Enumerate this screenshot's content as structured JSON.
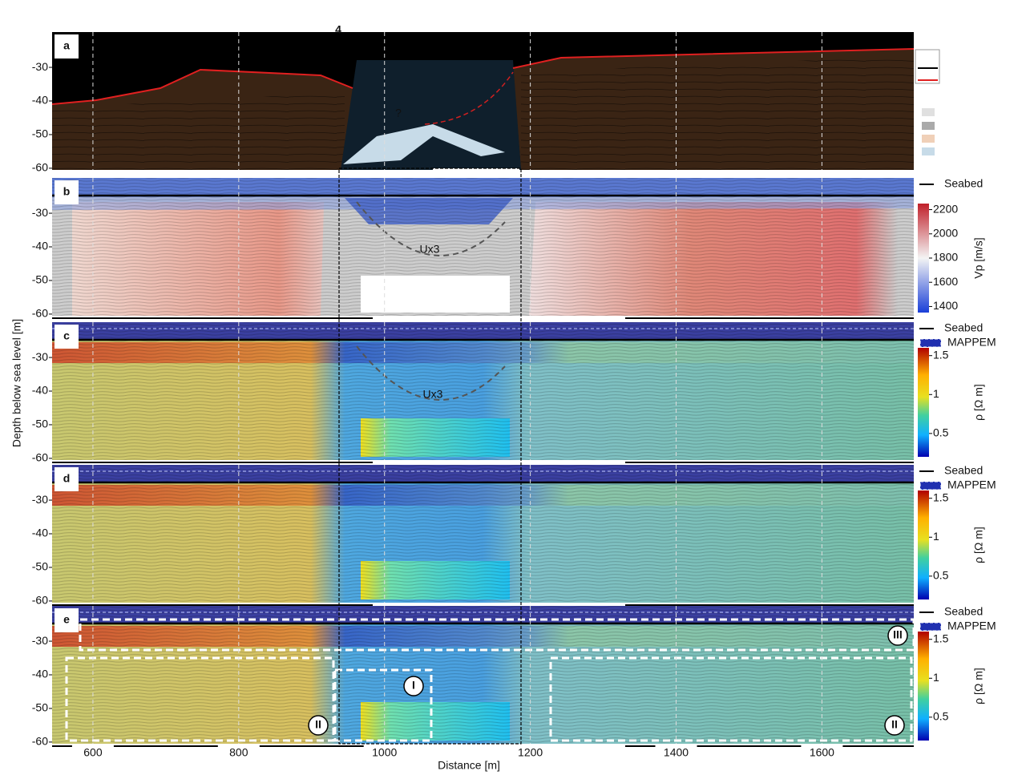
{
  "figure": {
    "top_label": "4",
    "y_axis_label": "Depth below sea level [m]",
    "x_axis_label": "Distance [m]",
    "depth_lim": [
      -19.5,
      -60.5
    ],
    "depth_ticks": [
      -30,
      -40,
      -50,
      -60
    ],
    "distance_lim": [
      544,
      1726
    ],
    "distance_ticks": [
      600,
      800,
      1000,
      1200,
      1400,
      1600
    ],
    "panels": [
      {
        "label": "a",
        "annotations": [
          "?"
        ]
      },
      {
        "label": "b",
        "legend": [
          "Seabed"
        ],
        "annotations": [
          "Ux3"
        ],
        "colorbar": {
          "label": "Vp [m/s]",
          "lim": [
            1350,
            2250
          ],
          "ticks": [
            2200,
            2000,
            1800,
            1600,
            1400
          ]
        }
      },
      {
        "label": "c",
        "legend": [
          "Seabed",
          "MAPPEM"
        ],
        "annotations": [
          "Ux3"
        ],
        "colorbar": {
          "label": "ρ [Ω m]",
          "lim": [
            0.2,
            1.6
          ],
          "ticks": [
            1.5,
            1,
            0.5
          ]
        }
      },
      {
        "label": "d",
        "legend": [
          "Seabed",
          "MAPPEM"
        ],
        "colorbar": {
          "label": "ρ [Ω m]",
          "lim": [
            0.2,
            1.6
          ],
          "ticks": [
            1.5,
            1,
            0.5
          ]
        }
      },
      {
        "label": "e",
        "legend": [
          "Seabed",
          "MAPPEM"
        ],
        "annotations": [
          "I",
          "II",
          "II",
          "III"
        ],
        "colorbar": {
          "label": "ρ [Ω m]",
          "lim": [
            0.2,
            1.6
          ],
          "ticks": [
            1.5,
            1,
            0.5
          ]
        }
      }
    ]
  }
}
